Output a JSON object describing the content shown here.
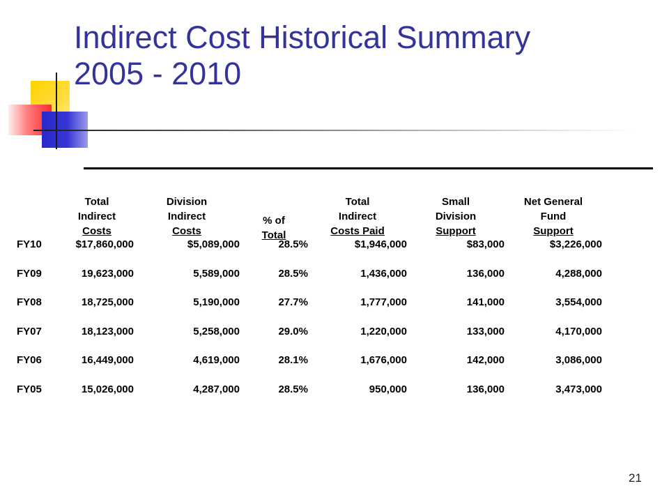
{
  "slide": {
    "title_line1": "Indirect Cost Historical Summary",
    "title_line2": "2005 - 2010",
    "page_number": "21"
  },
  "table": {
    "headers": [
      {
        "lines": [
          ""
        ],
        "underline": ""
      },
      {
        "lines": [
          "Total",
          "Indirect"
        ],
        "underline": "Costs"
      },
      {
        "lines": [
          "Division",
          "Indirect"
        ],
        "underline": "Costs"
      },
      {
        "lines": [
          "% of"
        ],
        "underline": "Total"
      },
      {
        "lines": [
          "Total",
          "Indirect"
        ],
        "underline": "Costs Paid"
      },
      {
        "lines": [
          "Small",
          "Division"
        ],
        "underline": "Support"
      },
      {
        "lines": [
          "Net General",
          "Fund"
        ],
        "underline": "Support"
      }
    ],
    "rows": [
      [
        "FY10",
        "$17,860,000",
        "$5,089,000",
        "28.5%",
        "$1,946,000",
        "$83,000",
        "$3,226,000"
      ],
      [
        "FY09",
        "19,623,000",
        "5,589,000",
        "28.5%",
        "1,436,000",
        "136,000",
        "4,288,000"
      ],
      [
        "FY08",
        "18,725,000",
        "5,190,000",
        "27.7%",
        "1,777,000",
        "141,000",
        "3,554,000"
      ],
      [
        "FY07",
        "18,123,000",
        "5,258,000",
        "29.0%",
        "1,220,000",
        "133,000",
        "4,170,000"
      ],
      [
        "FY06",
        "16,449,000",
        "4,619,000",
        "28.1%",
        "1,676,000",
        "142,000",
        "3,086,000"
      ],
      [
        "FY05",
        "15,026,000",
        "4,287,000",
        "28.5%",
        "950,000",
        "136,000",
        "3,473,000"
      ]
    ]
  },
  "colors": {
    "title": "#333399",
    "decor_yellow": "#ffd200",
    "decor_red": "#ff2a2a",
    "decor_blue": "#2a2acb"
  }
}
